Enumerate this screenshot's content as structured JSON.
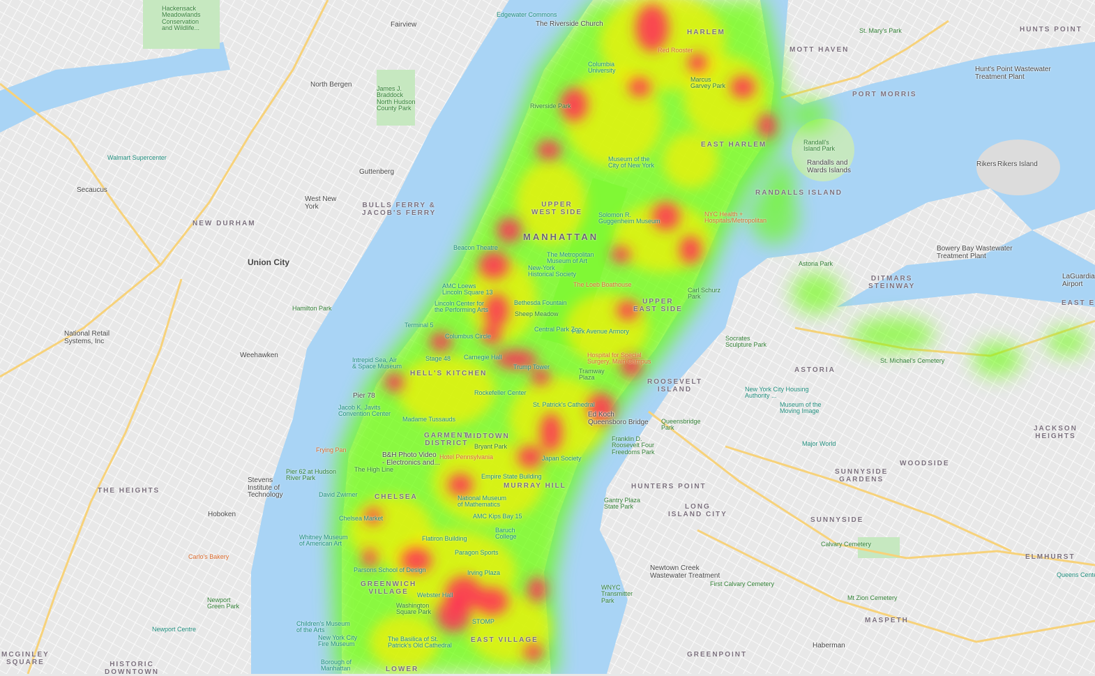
{
  "map": {
    "type": "heatmap-over-street-map",
    "colors": {
      "land": "#e8e8e8",
      "water": "#a9d4f5",
      "park": "#c6e8c0",
      "highway": "#f7d27a",
      "heat_low": "#66ff00",
      "heat_mid": "#ffee00",
      "heat_high": "#ff2a5a"
    },
    "labels": [
      {
        "text": "HARLEM",
        "kind": "area"
      },
      {
        "text": "EAST HARLEM",
        "kind": "area"
      },
      {
        "text": "UPPER\nWEST SIDE",
        "kind": "area"
      },
      {
        "text": "MANHATTAN",
        "kind": "bigarea"
      },
      {
        "text": "UPPER\nEAST SIDE",
        "kind": "area"
      },
      {
        "text": "HELL'S KITCHEN",
        "kind": "area"
      },
      {
        "text": "MIDTOWN",
        "kind": "area"
      },
      {
        "text": "GARMENT\nDISTRICT",
        "kind": "area"
      },
      {
        "text": "MURRAY HILL",
        "kind": "area"
      },
      {
        "text": "CHELSEA",
        "kind": "area"
      },
      {
        "text": "GREENWICH\nVILLAGE",
        "kind": "area"
      },
      {
        "text": "EAST VILLAGE",
        "kind": "area"
      },
      {
        "text": "ROOSEVELT\nISLAND",
        "kind": "area"
      },
      {
        "text": "LOWER",
        "kind": "area"
      },
      {
        "text": "Fairview",
        "kind": "town"
      },
      {
        "text": "North Bergen",
        "kind": "town"
      },
      {
        "text": "Guttenberg",
        "kind": "town"
      },
      {
        "text": "West New\nYork",
        "kind": "town"
      },
      {
        "text": "BULLS FERRY &\nJACOB'S FERRY",
        "kind": "area"
      },
      {
        "text": "NEW DURHAM",
        "kind": "area"
      },
      {
        "text": "Union City",
        "kind": "city"
      },
      {
        "text": "Secaucus",
        "kind": "town"
      },
      {
        "text": "Weehawken",
        "kind": "town"
      },
      {
        "text": "Hoboken",
        "kind": "town"
      },
      {
        "text": "THE HEIGHTS",
        "kind": "area"
      },
      {
        "text": "MCGINLEY\nSQUARE",
        "kind": "area"
      },
      {
        "text": "HISTORIC\nDOWNTOWN",
        "kind": "area"
      },
      {
        "text": "Hackensack\nMeadowlands\nConservation\nand Wildlife...",
        "kind": "park"
      },
      {
        "text": "Walmart Supercenter",
        "kind": "poi"
      },
      {
        "text": "Hamilton Park",
        "kind": "park"
      },
      {
        "text": "National Retail\nSystems, Inc",
        "kind": "town"
      },
      {
        "text": "Stevens\nInstitute of\nTechnology",
        "kind": "town"
      },
      {
        "text": "Carlo's Bakery",
        "kind": "food"
      },
      {
        "text": "Newport\nGreen Park",
        "kind": "park"
      },
      {
        "text": "Newport Centre",
        "kind": "poi"
      },
      {
        "text": "James J.\nBraddock\nNorth Hudson\nCounty Park",
        "kind": "park"
      },
      {
        "text": "MOTT HAVEN",
        "kind": "area"
      },
      {
        "text": "HUNTS POINT",
        "kind": "area"
      },
      {
        "text": "PORT MORRIS",
        "kind": "area"
      },
      {
        "text": "St. Mary's Park",
        "kind": "park"
      },
      {
        "text": "Hunt's Point Wastewater\nTreatment Plant",
        "kind": "town"
      },
      {
        "text": "Randall's\nIsland Park",
        "kind": "park"
      },
      {
        "text": "Randalls and\nWards Islands",
        "kind": "town"
      },
      {
        "text": "RANDALLS ISLAND",
        "kind": "area"
      },
      {
        "text": "Rikers Island",
        "kind": "town"
      },
      {
        "text": "Bowery Bay Wastewater\nTreatment Plant",
        "kind": "town"
      },
      {
        "text": "Astoria Park",
        "kind": "park"
      },
      {
        "text": "DITMARS\nSTEINWAY",
        "kind": "area"
      },
      {
        "text": "LaGuardia\nAirport",
        "kind": "town"
      },
      {
        "text": "EAST EL",
        "kind": "area"
      },
      {
        "text": "ASTORIA",
        "kind": "area"
      },
      {
        "text": "St. Michael's Cemetery",
        "kind": "park"
      },
      {
        "text": "Socrates\nSculpture Park",
        "kind": "park"
      },
      {
        "text": "New York City Housing\nAuthority ...",
        "kind": "poi"
      },
      {
        "text": "Museum of the\nMoving Image",
        "kind": "poi"
      },
      {
        "text": "JACKSON\nHEIGHTS",
        "kind": "area"
      },
      {
        "text": "WOODSIDE",
        "kind": "area"
      },
      {
        "text": "SUNNYSIDE\nGARDENS",
        "kind": "area"
      },
      {
        "text": "HUNTERS POINT",
        "kind": "area"
      },
      {
        "text": "LONG\nISLAND CITY",
        "kind": "area"
      },
      {
        "text": "SUNNYSIDE",
        "kind": "area"
      },
      {
        "text": "Calvary Cemetery",
        "kind": "park"
      },
      {
        "text": "ELMHURST",
        "kind": "area"
      },
      {
        "text": "Queens Cente",
        "kind": "poi"
      },
      {
        "text": "First Calvary Cemetery",
        "kind": "park"
      },
      {
        "text": "Mt Zion Cemetery",
        "kind": "park"
      },
      {
        "text": "MASPETH",
        "kind": "area"
      },
      {
        "text": "Haberman",
        "kind": "town"
      },
      {
        "text": "GREENPOINT",
        "kind": "area"
      },
      {
        "text": "Newtown Creek\nWastewater Treatment",
        "kind": "town"
      },
      {
        "text": "WNYC\nTransmitter\nPark",
        "kind": "park"
      },
      {
        "text": "Gantry Plaza\nState Park",
        "kind": "park"
      },
      {
        "text": "Queensbridge\nPark",
        "kind": "park"
      },
      {
        "text": "Major World",
        "kind": "poi"
      },
      {
        "text": "Carl Schurz\nPark",
        "kind": "park"
      },
      {
        "text": "NYC Health +\nHospitals/Metropolitan",
        "kind": "food"
      },
      {
        "text": "Columbia\nUniversity",
        "kind": "poi"
      },
      {
        "text": "Riverside Park",
        "kind": "park"
      },
      {
        "text": "Red Rooster",
        "kind": "food"
      },
      {
        "text": "Marcus\nGarvey Park",
        "kind": "park"
      },
      {
        "text": "The Riverside Church",
        "kind": "town"
      },
      {
        "text": "Museum of the\nCity of New York",
        "kind": "poi"
      },
      {
        "text": "Solomon R.\nGuggenheim Museum",
        "kind": "poi"
      },
      {
        "text": "Beacon Theatre",
        "kind": "poi"
      },
      {
        "text": "The Metropolitan\nMuseum of Art",
        "kind": "poi"
      },
      {
        "text": "New-York\nHistorical Society",
        "kind": "poi"
      },
      {
        "text": "The Loeb Boathouse",
        "kind": "food"
      },
      {
        "text": "AMC Loews\nLincoln Square 13",
        "kind": "poi"
      },
      {
        "text": "Bethesda Fountain",
        "kind": "poi"
      },
      {
        "text": "Lincoln Center for\nthe Performing Arts",
        "kind": "poi"
      },
      {
        "text": "Sheep Meadow",
        "kind": "park"
      },
      {
        "text": "Central Park Zoo",
        "kind": "poi"
      },
      {
        "text": "Park Avenue Armory",
        "kind": "poi"
      },
      {
        "text": "Columbus Circle",
        "kind": "poi"
      },
      {
        "text": "Carnegie Hall",
        "kind": "poi"
      },
      {
        "text": "Trump Tower",
        "kind": "poi"
      },
      {
        "text": "Stage 48",
        "kind": "poi"
      },
      {
        "text": "Intrepid Sea, Air\n& Space Museum",
        "kind": "poi"
      },
      {
        "text": "Tramway\nPlaza",
        "kind": "park"
      },
      {
        "text": "Hospital for Special\nSurgery, Main Campus",
        "kind": "food"
      },
      {
        "text": "Rockefeller Center",
        "kind": "poi"
      },
      {
        "text": "St. Patrick's Cathedral",
        "kind": "poi"
      },
      {
        "text": "Jacob K. Javits\nConvention Center",
        "kind": "poi"
      },
      {
        "text": "Madame Tussauds",
        "kind": "poi"
      },
      {
        "text": "Pier 78",
        "kind": "town"
      },
      {
        "text": "Bryant Park",
        "kind": "park"
      },
      {
        "text": "Frying Pan",
        "kind": "food"
      },
      {
        "text": "B&H Photo Video\n- Electronics and...",
        "kind": "town"
      },
      {
        "text": "Hotel Pennsylvania",
        "kind": "food"
      },
      {
        "text": "Empire State Building",
        "kind": "poi"
      },
      {
        "text": "Japan Society",
        "kind": "poi"
      },
      {
        "text": "Pier 62 at Hudson\nRiver Park",
        "kind": "park"
      },
      {
        "text": "The High Line",
        "kind": "park"
      },
      {
        "text": "National Museum\nof Mathematics",
        "kind": "poi"
      },
      {
        "text": "David Zwirner",
        "kind": "poi"
      },
      {
        "text": "AMC Kips Bay 15",
        "kind": "poi"
      },
      {
        "text": "Chelsea Market",
        "kind": "poi"
      },
      {
        "text": "Baruch\nCollege",
        "kind": "poi"
      },
      {
        "text": "Flatiron Building",
        "kind": "poi"
      },
      {
        "text": "Whitney Museum\nof American Art",
        "kind": "poi"
      },
      {
        "text": "Paragon Sports",
        "kind": "poi"
      },
      {
        "text": "Parsons School of Design",
        "kind": "poi"
      },
      {
        "text": "Irving Plaza",
        "kind": "poi"
      },
      {
        "text": "Webster Hall",
        "kind": "poi"
      },
      {
        "text": "Washington\nSquare Park",
        "kind": "park"
      },
      {
        "text": "STOMP",
        "kind": "poi"
      },
      {
        "text": "Children's Museum\nof the Arts",
        "kind": "poi"
      },
      {
        "text": "New York City\nFire Museum",
        "kind": "poi"
      },
      {
        "text": "The Basilica of St.\nPatrick's Old Cathedral",
        "kind": "poi"
      },
      {
        "text": "Ed Koch\nQueensboro Bridge",
        "kind": "town"
      },
      {
        "text": "Franklin D.\nRoosevelt Four\nFreedoms Park",
        "kind": "park"
      },
      {
        "text": "Edgewater Commons",
        "kind": "poi"
      },
      {
        "text": "Terminal 5",
        "kind": "poi"
      },
      {
        "text": "Borough of\nManhattan",
        "kind": "poi"
      },
      {
        "text": "Rikers",
        "kind": "town"
      }
    ]
  }
}
